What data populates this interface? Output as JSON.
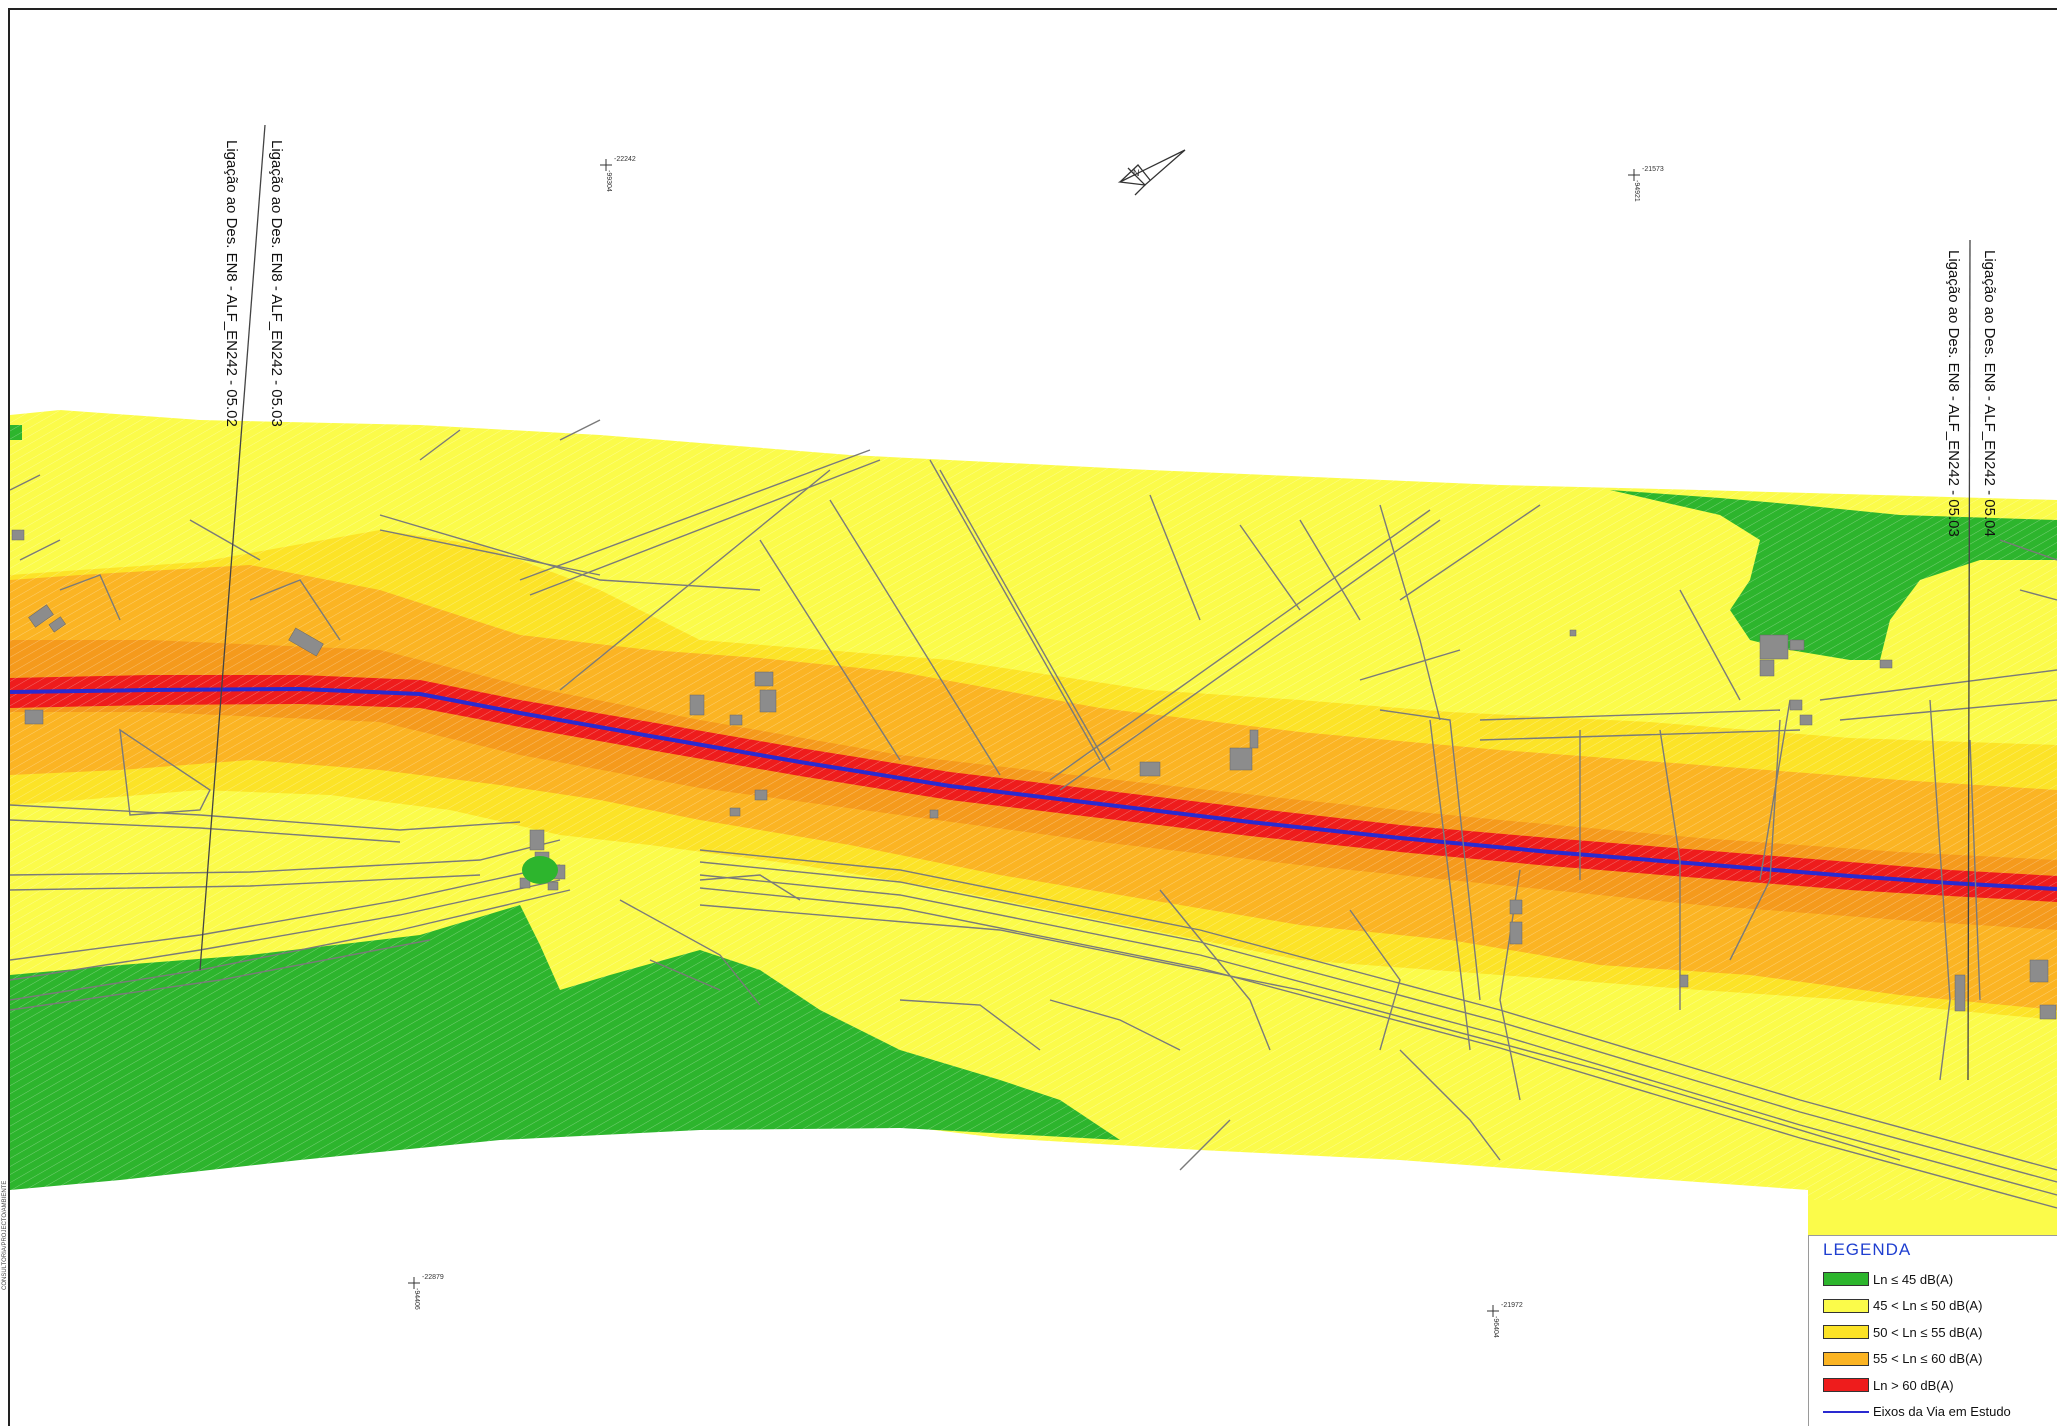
{
  "map": {
    "colors": {
      "zone_le45": "#2db52d",
      "zone_45_50": "#fbfb4a",
      "zone_50_55": "#fce327",
      "zone_55_60": "#fbb423",
      "zone_gt60": "#ee1c1c",
      "road_axis": "#2a2ad0",
      "linework": "#7a7a7a",
      "buildings": "#8c8c8c"
    },
    "north_arrow_label": "N",
    "sheet_labels": {
      "left_top": "Ligação ao Des. EN8 - ALF_EN242 - 05.03",
      "left_bottom": "Ligação ao Des. EN8 - ALF_EN242 - 05.02",
      "right_top": "Ligação ao Des. EN8 - ALF_EN242 - 05.04",
      "right_bottom": "Ligação ao Des. EN8 - ALF_EN242 - 05.03"
    },
    "grid_marks": [
      {
        "h": "-22242",
        "v": "-99304"
      },
      {
        "h": "-21573",
        "v": "-94921"
      },
      {
        "h": "-22879",
        "v": "-94406"
      },
      {
        "h": "-21972",
        "v": "-96404"
      }
    ],
    "side_stamp": "CONSULTORIA/PROJECTO/AMBIENTE"
  },
  "legend": {
    "title": "LEGENDA",
    "items": [
      {
        "label": "Ln ≤ 45 dB(A)",
        "color": "#2db52d"
      },
      {
        "label": "45 < Ln ≤ 50 dB(A)",
        "color": "#fbfb4a"
      },
      {
        "label": "50 < Ln ≤ 55 dB(A)",
        "color": "#fce327"
      },
      {
        "label": "55 < Ln ≤ 60 dB(A)",
        "color": "#fbb423"
      },
      {
        "label": "Ln > 60 dB(A)",
        "color": "#ee1c1c"
      }
    ],
    "axis_label": "Eixos da Via em Estudo",
    "axis_color": "#2a2ad0"
  }
}
